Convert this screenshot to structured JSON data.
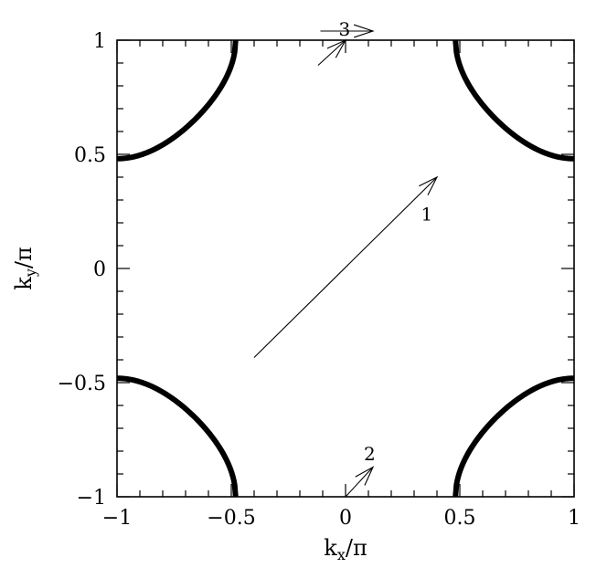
{
  "chart_data": {
    "type": "line",
    "title": "",
    "xlabel": "k_x/π",
    "ylabel": "k_y/π",
    "xlabel_main": "k",
    "xlabel_sub": "x",
    "xlabel_rest": "/π",
    "ylabel_main": "k",
    "ylabel_sub": "y",
    "ylabel_rest": "/π",
    "xlim": [
      -1,
      1
    ],
    "ylim": [
      -1,
      1
    ],
    "grid": false,
    "legend": "none",
    "x_ticks": [
      -1,
      -0.5,
      0,
      0.5,
      1
    ],
    "x_tick_labels": [
      "−1",
      "−0.5",
      "0",
      "0.5",
      "1"
    ],
    "y_ticks": [
      -1,
      -0.5,
      0,
      0.5,
      1
    ],
    "y_tick_labels": [
      "−1",
      "−0.5",
      "0",
      "0.5",
      "1"
    ],
    "minor_tick_step": 0.1,
    "fermi_surface": {
      "description_param": "cos(pi kx) + cos(pi ky) = c",
      "c": -0.94,
      "color": "#000000"
    },
    "arrows": [
      {
        "label": "1",
        "from": [
          -0.4,
          -0.39
        ],
        "to": [
          0.4,
          0.4
        ],
        "label_at": [
          0.33,
          0.21
        ]
      },
      {
        "label": "2",
        "from": [
          0.0,
          -1.0
        ],
        "to": [
          0.12,
          -0.87
        ],
        "label_at": [
          0.08,
          -0.84
        ]
      },
      {
        "label": "3",
        "from": [
          -0.12,
          0.89
        ],
        "to": [
          0.0,
          1.0
        ],
        "label_at": [
          -0.03,
          1.02
        ]
      },
      {
        "label": "",
        "from": [
          -0.11,
          1.04
        ],
        "to": [
          0.12,
          1.04
        ],
        "label_at": null
      }
    ]
  }
}
